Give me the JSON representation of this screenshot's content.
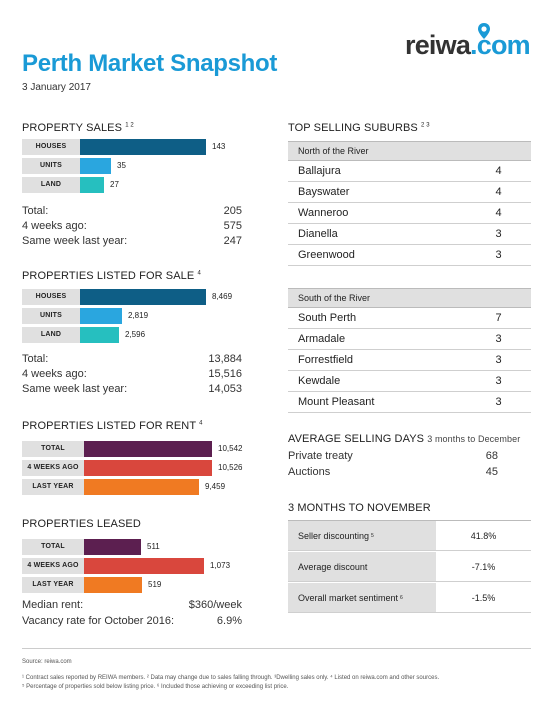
{
  "header": {
    "title": "Perth Market Snapshot",
    "date": "3 January 2017",
    "logo_main": "reiwa",
    "logo_suffix": ".com"
  },
  "property_sales": {
    "title": "PROPERTY SALES",
    "sup": "1 2",
    "bars": [
      {
        "label": "HOUSES",
        "value": 143,
        "display": "143",
        "color": "#0e5e86"
      },
      {
        "label": "UNITS",
        "value": 35,
        "display": "35",
        "color": "#2aa6df"
      },
      {
        "label": "LAND",
        "value": 27,
        "display": "27",
        "color": "#26bfbf"
      }
    ],
    "stats": [
      {
        "label": "Total:",
        "value": "205"
      },
      {
        "label": "4 weeks ago:",
        "value": "575"
      },
      {
        "label": "Same week last year:",
        "value": "247"
      }
    ]
  },
  "listed_sale": {
    "title": "PROPERTIES LISTED FOR SALE",
    "sup": "4",
    "bars": [
      {
        "label": "HOUSES",
        "value": 8469,
        "display": "8,469",
        "color": "#0e5e86"
      },
      {
        "label": "UNITS",
        "value": 2819,
        "display": "2,819",
        "color": "#2aa6df"
      },
      {
        "label": "LAND",
        "value": 2596,
        "display": "2,596",
        "color": "#26bfbf"
      }
    ],
    "stats": [
      {
        "label": "Total:",
        "value": "13,884"
      },
      {
        "label": "4 weeks ago:",
        "value": "15,516"
      },
      {
        "label": "Same week last year:",
        "value": "14,053"
      }
    ]
  },
  "listed_rent": {
    "title": "PROPERTIES LISTED FOR RENT",
    "sup": "4",
    "bars": [
      {
        "label": "TOTAL",
        "value": 10542,
        "display": "10,542",
        "color": "#5c1f50"
      },
      {
        "label": "4 WEEKS AGO",
        "value": 10526,
        "display": "10,526",
        "color": "#d9473d"
      },
      {
        "label": "LAST YEAR",
        "value": 9459,
        "display": "9,459",
        "color": "#f07a22"
      }
    ]
  },
  "leased": {
    "title": "PROPERTIES LEASED",
    "bars": [
      {
        "label": "TOTAL",
        "value": 511,
        "display": "511",
        "color": "#5c1f50"
      },
      {
        "label": "4 WEEKS AGO",
        "value": 1073,
        "display": "1,073",
        "color": "#d9473d"
      },
      {
        "label": "LAST YEAR",
        "value": 519,
        "display": "519",
        "color": "#f07a22"
      }
    ],
    "stats": [
      {
        "label": "Median rent:",
        "value": "$360/week"
      },
      {
        "label": "Vacancy rate for October 2016:",
        "value": "6.9%"
      }
    ]
  },
  "top_suburbs": {
    "title": "TOP SELLING SUBURBS",
    "sup": "2 3",
    "north": {
      "heading": "North of the River",
      "rows": [
        {
          "name": "Ballajura",
          "value": "4"
        },
        {
          "name": "Bayswater",
          "value": "4"
        },
        {
          "name": "Wanneroo",
          "value": "4"
        },
        {
          "name": "Dianella",
          "value": "3"
        },
        {
          "name": "Greenwood",
          "value": "3"
        }
      ]
    },
    "south": {
      "heading": "South of the River",
      "rows": [
        {
          "name": "South Perth",
          "value": "7"
        },
        {
          "name": "Armadale",
          "value": "3"
        },
        {
          "name": "Forrestfield",
          "value": "3"
        },
        {
          "name": "Kewdale",
          "value": "3"
        },
        {
          "name": "Mount Pleasant",
          "value": "3"
        }
      ]
    }
  },
  "avg_days": {
    "title": "AVERAGE SELLING DAYS",
    "subtitle": "3 months to December",
    "rows": [
      {
        "label": "Private treaty",
        "value": "68"
      },
      {
        "label": "Auctions",
        "value": "45"
      }
    ]
  },
  "three_months": {
    "title": "3 MONTHS TO NOVEMBER",
    "rows": [
      {
        "label": "Seller discounting",
        "sup": "5",
        "value": "41.8%"
      },
      {
        "label": "Average discount",
        "sup": "",
        "value": "-7.1%"
      },
      {
        "label": "Overall market sentiment",
        "sup": "6",
        "value": "-1.5%"
      }
    ]
  },
  "footer": {
    "source": "Source: reiwa.com",
    "note1": "¹ Contract sales reported by REIWA members. ² Data may change due to sales falling through. ³Dwelling sales only. ⁴ Listed on reiwa.com and other sources.",
    "note2": "⁵ Percentage of properties sold below listing price. ⁶ Included those achieving or exceeding list price."
  }
}
